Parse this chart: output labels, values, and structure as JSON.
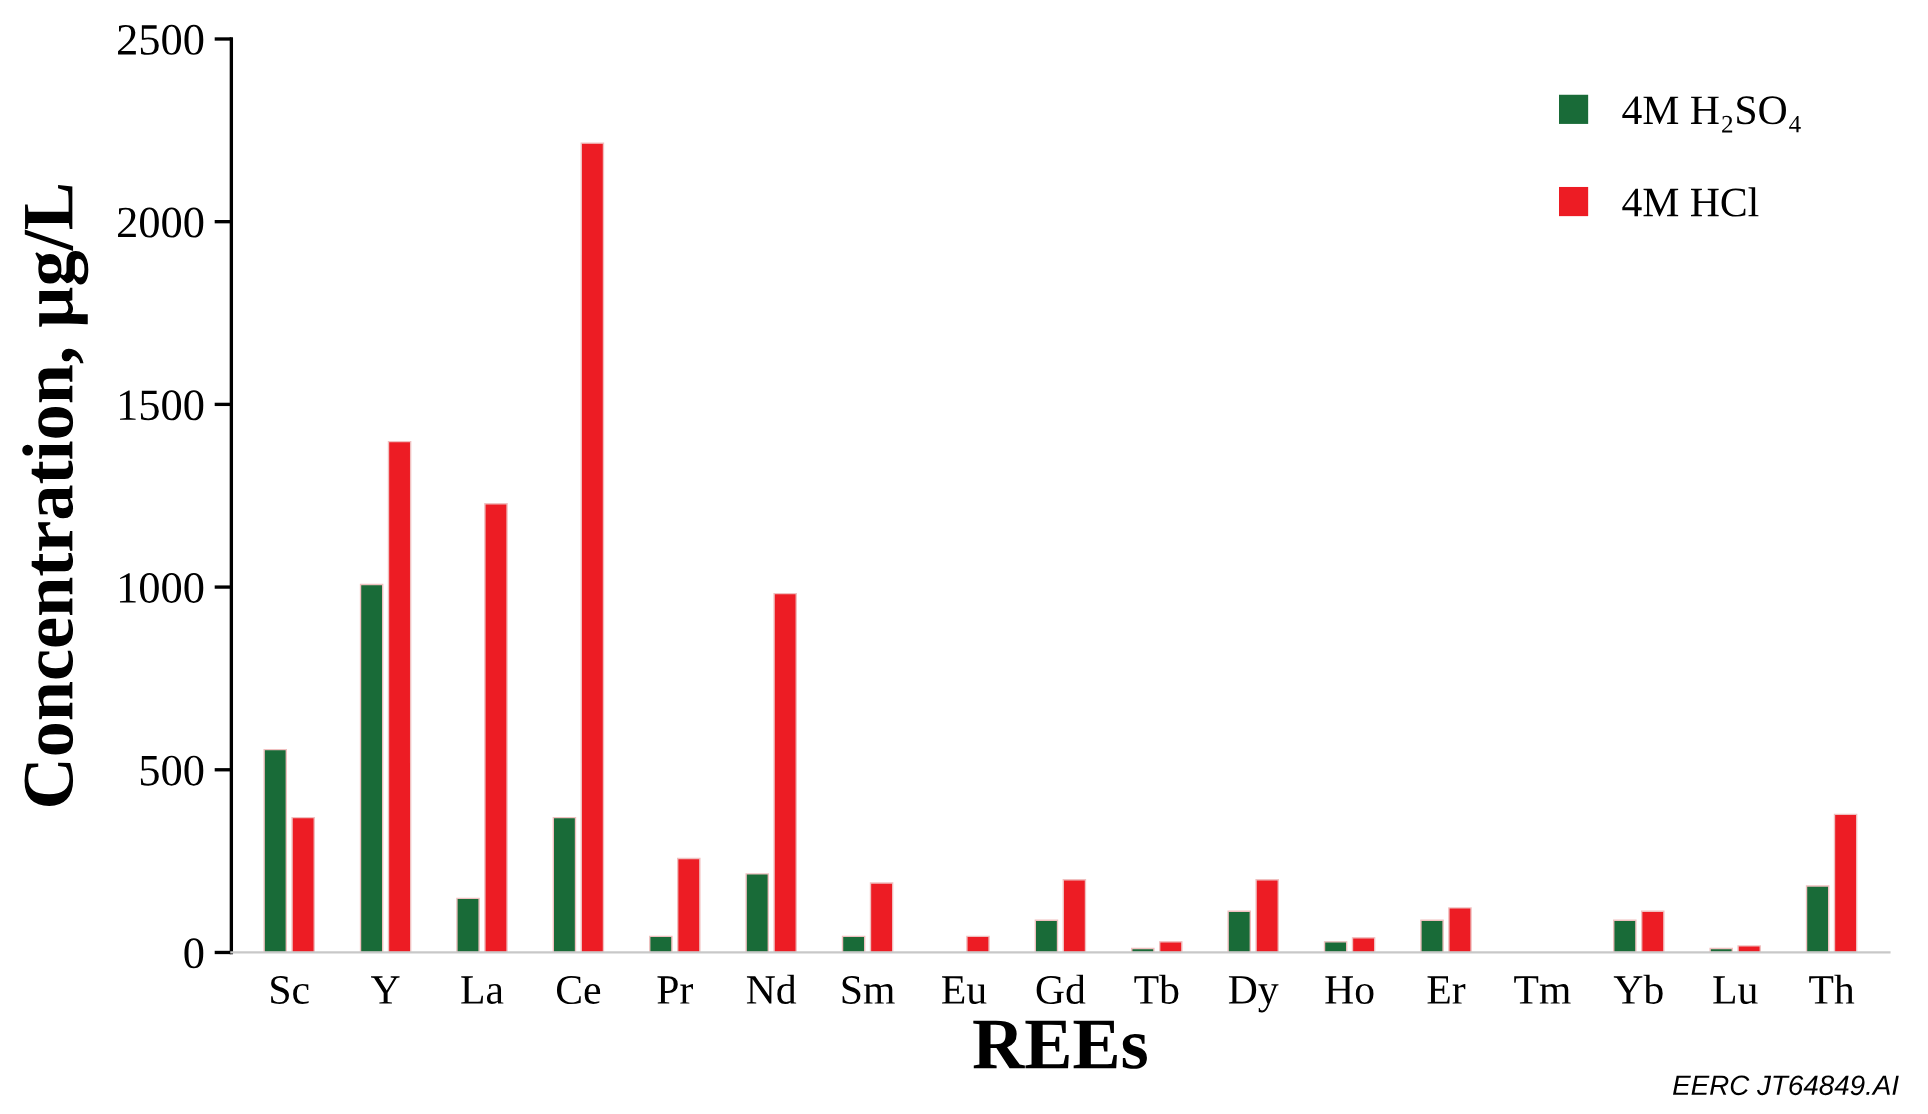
{
  "chart_data": {
    "type": "bar",
    "xlabel": "REEs",
    "ylabel": "Concentration, µg/L",
    "categories": [
      "Sc",
      "Y",
      "La",
      "Ce",
      "Pr",
      "Nd",
      "Sm",
      "Eu",
      "Gd",
      "Tb",
      "Dy",
      "Ho",
      "Er",
      "Tm",
      "Yb",
      "Lu",
      "Th"
    ],
    "series": [
      {
        "name": "4M H₂SO₄",
        "color": "#196b38",
        "values": [
          555,
          1007,
          148,
          369,
          44,
          215,
          44,
          null,
          88,
          11,
          113,
          29,
          88,
          null,
          88,
          11,
          182
        ]
      },
      {
        "name": "4M HCl",
        "color": "#ed1c24",
        "values": [
          369,
          1398,
          1228,
          2215,
          257,
          982,
          190,
          44,
          199,
          29,
          199,
          40,
          122,
          null,
          113,
          18,
          378
        ]
      }
    ],
    "ylim": [
      0,
      2500
    ],
    "yticks": [
      0,
      500,
      1000,
      1500,
      2000,
      2500
    ],
    "grid": false,
    "legend": "top right",
    "annotations": [
      "EERC JT64849.AI"
    ]
  }
}
